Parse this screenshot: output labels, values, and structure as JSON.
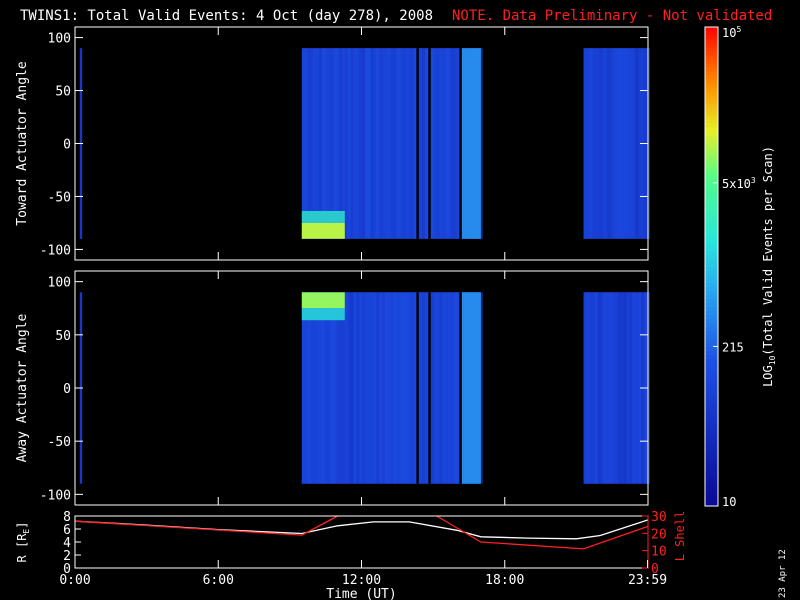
{
  "header": {
    "title": "TWINS1: Total Valid Events:  4 Oct (day 278), 2008",
    "note": "NOTE. Data Preliminary - Not validated"
  },
  "colorbar": {
    "label": "LOG10(Total Valid Events per Scan)",
    "label_main": "LOG",
    "label_sub": "10",
    "label_rest": "(Total Valid Events per Scan)",
    "ticks": [
      {
        "value": 10,
        "base": "10",
        "exp": ""
      },
      {
        "value": 215,
        "base": "215",
        "exp": ""
      },
      {
        "value": 5000,
        "base": "5x10",
        "exp": "3"
      },
      {
        "value": 100000,
        "base": "10",
        "exp": "5"
      }
    ],
    "range": [
      10,
      100000
    ],
    "scale": "log"
  },
  "footer": {
    "date_stamp": "23 Apr 12"
  },
  "chart_data": [
    {
      "type": "heatmap",
      "ylabel": "Toward Actuator Angle",
      "ylim": [
        -110,
        110
      ],
      "yticks": [
        -100,
        -50,
        0,
        50,
        100
      ],
      "color_scale": "log",
      "x_units": "hours UT",
      "data_blocks": [
        {
          "x_start": 0.2,
          "x_end": 0.3,
          "value": 60
        },
        {
          "x_start": 9.5,
          "x_end": 17.0,
          "value": 90
        },
        {
          "x_start": 21.3,
          "x_end": 24.0,
          "value": 80
        }
      ],
      "highlights": [
        {
          "x_start": 9.5,
          "x_end": 11.3,
          "y_start": -90,
          "y_end": -75,
          "value": 10000,
          "note": "high counts near -90"
        }
      ],
      "data_gaps": [
        {
          "x_start": 14.3,
          "x_end": 14.4
        },
        {
          "x_start": 14.8,
          "x_end": 14.9
        },
        {
          "x_start": 16.1,
          "x_end": 16.2
        }
      ],
      "bright_band": {
        "x_start": 16.2,
        "x_end": 17.0,
        "value": 400
      }
    },
    {
      "type": "heatmap",
      "ylabel": "Away Actuator Angle",
      "ylim": [
        -110,
        110
      ],
      "yticks": [
        -100,
        -50,
        0,
        50,
        100
      ],
      "color_scale": "log",
      "x_units": "hours UT",
      "data_blocks": [
        {
          "x_start": 0.2,
          "x_end": 0.3,
          "value": 60
        },
        {
          "x_start": 9.5,
          "x_end": 17.0,
          "value": 90
        },
        {
          "x_start": 21.3,
          "x_end": 24.0,
          "value": 80
        }
      ],
      "highlights": [
        {
          "x_start": 9.5,
          "x_end": 11.3,
          "y_start": 75,
          "y_end": 90,
          "value": 8000,
          "note": "high counts near +90"
        }
      ],
      "data_gaps": [
        {
          "x_start": 14.3,
          "x_end": 14.4
        },
        {
          "x_start": 14.8,
          "x_end": 14.9
        },
        {
          "x_start": 16.1,
          "x_end": 16.2
        }
      ],
      "bright_band": {
        "x_start": 16.2,
        "x_end": 17.0,
        "value": 400
      }
    },
    {
      "type": "line",
      "xlabel": "Time (UT)",
      "ylabel": "R [RE]",
      "ylabel_main": "R [R",
      "ylabel_sub": "E",
      "ylabel_tail": "]",
      "y2label": "L Shell",
      "ylim": [
        0,
        8
      ],
      "yticks": [
        0,
        2,
        4,
        6,
        8
      ],
      "y2lim": [
        0,
        30
      ],
      "y2ticks": [
        0,
        10,
        20,
        30
      ],
      "x_tick_labels": [
        "0:00",
        "6:00",
        "12:00",
        "18:00",
        "23:59"
      ],
      "x_tick_values": [
        0,
        6,
        12,
        18,
        23.98
      ],
      "xlim": [
        0,
        24
      ],
      "series": [
        {
          "color": "#ffffff",
          "axis": "left",
          "x": [
            0,
            3,
            6,
            9.5,
            11,
            12.5,
            14,
            16,
            17,
            19,
            21,
            22,
            24
          ],
          "y": [
            7.2,
            6.6,
            5.9,
            5.3,
            6.5,
            7.1,
            7.1,
            5.8,
            4.8,
            4.6,
            4.5,
            5.0,
            7.4
          ]
        },
        {
          "color": "#ff2020",
          "axis": "right",
          "x": [
            0,
            9.5,
            11.0,
            11.15,
            15.0,
            15.15,
            17.0,
            21.3,
            24
          ],
          "y": [
            27,
            19,
            30,
            null,
            null,
            30,
            15,
            11,
            24
          ]
        }
      ]
    }
  ]
}
